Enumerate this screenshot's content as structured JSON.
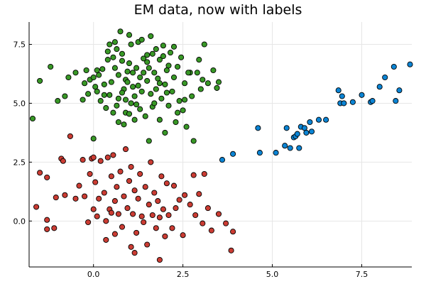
{
  "chart_data": {
    "type": "scatter",
    "title": "EM data, now with labels",
    "xlabel": "",
    "ylabel": "",
    "xlim": [
      -1.8,
      8.9
    ],
    "ylim": [
      -1.95,
      8.45
    ],
    "xticks": [
      0.0,
      2.5,
      5.0,
      7.5
    ],
    "xtick_labels": [
      "0.0",
      "2.5",
      "5.0",
      "7.5"
    ],
    "yticks": [
      0.0,
      2.5,
      5.0,
      7.5
    ],
    "ytick_labels": [
      "0.0",
      "2.5",
      "5.0",
      "7.5"
    ],
    "grid": true,
    "legend": "none",
    "series": [
      {
        "color": "#389826",
        "points": [
          [
            -1.7,
            4.35
          ],
          [
            -1.5,
            5.95
          ],
          [
            -1.2,
            6.55
          ],
          [
            -1.0,
            5.1
          ],
          [
            -0.8,
            5.3
          ],
          [
            -0.7,
            6.1
          ],
          [
            -0.5,
            6.3
          ],
          [
            -0.3,
            5.15
          ],
          [
            -0.25,
            5.85
          ],
          [
            -0.2,
            6.4
          ],
          [
            -0.15,
            5.4
          ],
          [
            -0.1,
            6.0
          ],
          [
            0.0,
            6.1
          ],
          [
            0.0,
            3.5
          ],
          [
            0.05,
            5.7
          ],
          [
            0.1,
            6.4
          ],
          [
            0.1,
            5.5
          ],
          [
            0.15,
            6.2
          ],
          [
            0.2,
            5.1
          ],
          [
            0.3,
            5.8
          ],
          [
            0.35,
            4.8
          ],
          [
            0.4,
            6.85
          ],
          [
            0.4,
            7.2
          ],
          [
            0.45,
            5.35
          ],
          [
            0.5,
            5.9
          ],
          [
            0.55,
            4.6
          ],
          [
            0.6,
            6.5
          ],
          [
            0.6,
            7.6
          ],
          [
            0.65,
            4.9
          ],
          [
            0.65,
            7.3
          ],
          [
            0.7,
            5.2
          ],
          [
            0.7,
            6.2
          ],
          [
            0.75,
            8.05
          ],
          [
            0.8,
            7.1
          ],
          [
            0.8,
            6.8
          ],
          [
            0.85,
            5.6
          ],
          [
            0.85,
            4.1
          ],
          [
            0.9,
            6.0
          ],
          [
            0.9,
            4.6
          ],
          [
            0.95,
            5.9
          ],
          [
            1.0,
            6.7
          ],
          [
            1.0,
            7.9
          ],
          [
            1.05,
            5.0
          ],
          [
            1.05,
            7.5
          ],
          [
            1.1,
            6.3
          ],
          [
            1.15,
            5.3
          ],
          [
            1.15,
            4.3
          ],
          [
            1.2,
            6.5
          ],
          [
            1.25,
            7.6
          ],
          [
            1.25,
            5.75
          ],
          [
            1.3,
            6.1
          ],
          [
            1.3,
            4.75
          ],
          [
            1.35,
            5.5
          ],
          [
            1.35,
            7.7
          ],
          [
            1.4,
            6.9
          ],
          [
            1.45,
            4.45
          ],
          [
            1.5,
            5.95
          ],
          [
            1.5,
            7.05
          ],
          [
            1.55,
            6.5
          ],
          [
            1.55,
            3.4
          ],
          [
            1.6,
            5.4
          ],
          [
            1.6,
            7.85
          ],
          [
            1.65,
            4.85
          ],
          [
            1.7,
            6.3
          ],
          [
            1.75,
            5.6
          ],
          [
            1.75,
            7.3
          ],
          [
            1.8,
            6.05
          ],
          [
            1.85,
            4.3
          ],
          [
            1.85,
            6.85
          ],
          [
            1.9,
            5.2
          ],
          [
            1.95,
            7.0
          ],
          [
            2.0,
            5.8
          ],
          [
            2.0,
            3.75
          ],
          [
            2.05,
            6.4
          ],
          [
            2.1,
            4.9
          ],
          [
            2.15,
            7.15
          ],
          [
            2.2,
            5.5
          ],
          [
            2.25,
            6.1
          ],
          [
            2.3,
            4.2
          ],
          [
            2.35,
            6.55
          ],
          [
            2.4,
            5.1
          ],
          [
            2.45,
            6.95
          ],
          [
            2.5,
            4.7
          ],
          [
            2.55,
            5.85
          ],
          [
            2.6,
            4.0
          ],
          [
            2.7,
            6.3
          ],
          [
            2.75,
            5.3
          ],
          [
            2.8,
            3.4
          ],
          [
            2.9,
            6.3
          ],
          [
            3.0,
            5.6
          ],
          [
            3.05,
            6.0
          ],
          [
            3.1,
            7.5
          ],
          [
            3.2,
            5.85
          ],
          [
            3.35,
            6.4
          ],
          [
            3.5,
            5.9
          ],
          [
            3.45,
            5.65
          ],
          [
            2.95,
            6.85
          ],
          [
            2.65,
            6.3
          ],
          [
            2.25,
            7.4
          ],
          [
            1.95,
            7.45
          ],
          [
            0.25,
            6.45
          ],
          [
            0.3,
            5.35
          ],
          [
            0.55,
            6.95
          ],
          [
            0.7,
            4.2
          ],
          [
            0.9,
            5.15
          ],
          [
            1.1,
            5.7
          ],
          [
            1.4,
            6.3
          ],
          [
            1.7,
            5.0
          ],
          [
            2.1,
            6.6
          ],
          [
            2.35,
            4.6
          ],
          [
            0.45,
            7.5
          ],
          [
            0.95,
            6.35
          ],
          [
            1.2,
            4.95
          ],
          [
            1.65,
            7.1
          ],
          [
            2.05,
            5.45
          ],
          [
            2.55,
            5.15
          ],
          [
            1.0,
            4.55
          ],
          [
            1.5,
            6.75
          ],
          [
            0.8,
            5.45
          ],
          [
            1.85,
            5.85
          ]
        ]
      },
      {
        "color": "#cb3c33",
        "points": [
          [
            -1.6,
            0.6
          ],
          [
            -1.5,
            2.05
          ],
          [
            -1.3,
            0.05
          ],
          [
            -1.3,
            1.85
          ],
          [
            -1.3,
            -0.35
          ],
          [
            -1.1,
            -0.3
          ],
          [
            -1.05,
            1.0
          ],
          [
            -0.9,
            2.65
          ],
          [
            -0.85,
            2.55
          ],
          [
            -0.8,
            1.1
          ],
          [
            -0.65,
            3.6
          ],
          [
            -0.5,
            0.95
          ],
          [
            -0.4,
            1.5
          ],
          [
            -0.3,
            2.6
          ],
          [
            -0.25,
            1.05
          ],
          [
            -0.15,
            -0.05
          ],
          [
            -0.05,
            2.65
          ],
          [
            0.0,
            0.5
          ],
          [
            -0.1,
            2.0
          ],
          [
            0.0,
            2.7
          ],
          [
            0.05,
            1.65
          ],
          [
            0.1,
            0.2
          ],
          [
            0.15,
            0.95
          ],
          [
            0.2,
            2.55
          ],
          [
            0.3,
            1.2
          ],
          [
            0.35,
            0.0
          ],
          [
            0.4,
            2.7
          ],
          [
            0.45,
            0.5
          ],
          [
            0.5,
            1.9
          ],
          [
            0.55,
            2.8
          ],
          [
            0.6,
            -0.55
          ],
          [
            0.6,
            0.85
          ],
          [
            0.65,
            1.45
          ],
          [
            0.7,
            0.3
          ],
          [
            0.75,
            2.1
          ],
          [
            0.8,
            -0.25
          ],
          [
            0.85,
            1.05
          ],
          [
            0.9,
            3.05
          ],
          [
            0.95,
            0.55
          ],
          [
            1.0,
            1.7
          ],
          [
            1.05,
            -1.1
          ],
          [
            1.05,
            2.3
          ],
          [
            1.1,
            0.3
          ],
          [
            1.15,
            1.3
          ],
          [
            1.2,
            -0.5
          ],
          [
            1.25,
            0.95
          ],
          [
            1.3,
            2.0
          ],
          [
            1.35,
            0.2
          ],
          [
            1.4,
            -0.05
          ],
          [
            1.45,
            1.45
          ],
          [
            1.5,
            -1.0
          ],
          [
            1.55,
            0.7
          ],
          [
            1.6,
            2.5
          ],
          [
            1.65,
            0.25
          ],
          [
            1.7,
            1.2
          ],
          [
            1.75,
            -0.3
          ],
          [
            1.8,
            0.85
          ],
          [
            1.85,
            -1.65
          ],
          [
            1.9,
            1.9
          ],
          [
            1.95,
            0.5
          ],
          [
            2.0,
            -0.65
          ],
          [
            2.05,
            1.6
          ],
          [
            2.1,
            0.25
          ],
          [
            2.2,
            -0.3
          ],
          [
            2.25,
            1.5
          ],
          [
            2.3,
            0.55
          ],
          [
            2.4,
            0.9
          ],
          [
            2.5,
            -0.6
          ],
          [
            2.55,
            1.1
          ],
          [
            2.7,
            0.7
          ],
          [
            2.8,
            1.95
          ],
          [
            2.85,
            0.25
          ],
          [
            2.95,
            1.15
          ],
          [
            3.05,
            -0.1
          ],
          [
            3.1,
            2.0
          ],
          [
            3.2,
            0.55
          ],
          [
            3.3,
            -0.4
          ],
          [
            3.5,
            0.3
          ],
          [
            3.7,
            -0.1
          ],
          [
            3.85,
            -1.25
          ],
          [
            3.9,
            -0.45
          ],
          [
            0.5,
            0.35
          ],
          [
            0.35,
            -0.8
          ],
          [
            1.15,
            -1.35
          ],
          [
            1.85,
            0.15
          ]
        ]
      },
      {
        "color": "#0b84d4",
        "points": [
          [
            3.6,
            2.6
          ],
          [
            3.9,
            2.85
          ],
          [
            4.6,
            3.95
          ],
          [
            4.65,
            2.9
          ],
          [
            5.1,
            2.9
          ],
          [
            5.35,
            3.2
          ],
          [
            5.4,
            3.95
          ],
          [
            5.5,
            3.1
          ],
          [
            5.6,
            3.55
          ],
          [
            5.65,
            3.6
          ],
          [
            5.7,
            3.7
          ],
          [
            5.75,
            3.1
          ],
          [
            5.8,
            4.0
          ],
          [
            5.9,
            3.95
          ],
          [
            5.95,
            3.75
          ],
          [
            6.05,
            4.2
          ],
          [
            6.1,
            3.8
          ],
          [
            6.3,
            4.3
          ],
          [
            6.5,
            4.3
          ],
          [
            6.85,
            5.55
          ],
          [
            6.9,
            5.0
          ],
          [
            6.95,
            5.3
          ],
          [
            7.0,
            5.0
          ],
          [
            7.25,
            5.05
          ],
          [
            7.5,
            5.35
          ],
          [
            7.75,
            5.05
          ],
          [
            7.8,
            5.1
          ],
          [
            8.0,
            5.7
          ],
          [
            8.15,
            6.1
          ],
          [
            8.4,
            6.55
          ],
          [
            8.45,
            5.1
          ],
          [
            8.55,
            5.55
          ],
          [
            8.85,
            6.65
          ]
        ]
      }
    ]
  }
}
